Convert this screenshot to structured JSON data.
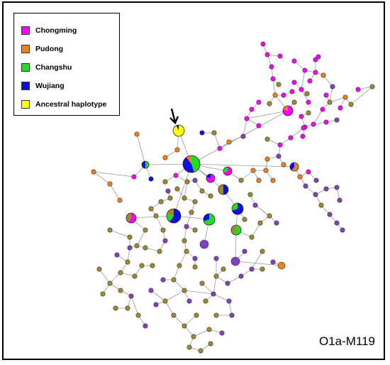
{
  "figure": {
    "caption": "O1a-M119",
    "legend": [
      {
        "label": "Chongming",
        "color": "#ff00ff"
      },
      {
        "label": "Pudong",
        "color": "#f08020"
      },
      {
        "label": "Changshu",
        "color": "#22dd22"
      },
      {
        "label": "Wujiang",
        "color": "#1010dd"
      },
      {
        "label": "Ancestral haplotype",
        "color": "#ffff00"
      }
    ],
    "arrow_icon": "arrow-down-icon",
    "minor_node_colors": [
      "#8040c0",
      "#a08a30",
      "#ff00ff",
      "#f08020"
    ]
  }
}
